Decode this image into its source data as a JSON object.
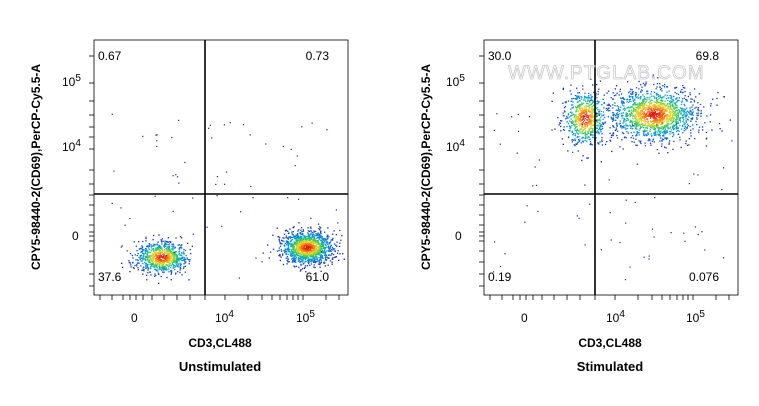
{
  "watermark": "WWW.PTGLAB.COM",
  "chart_data": [
    {
      "type": "scatter",
      "subtype": "flow-cytometry-density-dot-plot",
      "title": "Unstimulated",
      "xlabel": "CD3,CL488",
      "ylabel": "CPY5-98440-2(CD69),PerCP-Cy5.5-A",
      "x_scale": "biexponential",
      "y_scale": "biexponential",
      "x_ticks": [
        "0",
        "10^4",
        "10^5"
      ],
      "y_ticks": [
        "0",
        "10^4",
        "10^5"
      ],
      "quadrant_gates": {
        "x": 6000,
        "y": 2500
      },
      "quadrants": {
        "upper_left": "0.67",
        "upper_right": "0.73",
        "lower_left": "37.6",
        "lower_right": "61.0"
      },
      "populations": [
        {
          "name": "CD3-CD69-",
          "center": {
            "x": 900,
            "y": 0
          },
          "percent": 37.6
        },
        {
          "name": "CD3+CD69-",
          "center": {
            "x": 75000,
            "y": 300
          },
          "percent": 61.0
        }
      ]
    },
    {
      "type": "scatter",
      "subtype": "flow-cytometry-density-dot-plot",
      "title": "Stimulated",
      "xlabel": "CD3,CL488",
      "ylabel": "CPY5-98440-2(CD69),PerCP-Cy5.5-A",
      "x_scale": "biexponential",
      "y_scale": "biexponential",
      "x_ticks": [
        "0",
        "10^4",
        "10^5"
      ],
      "y_ticks": [
        "0",
        "10^4",
        "10^5"
      ],
      "quadrant_gates": {
        "x": 6000,
        "y": 2500
      },
      "quadrants": {
        "upper_left": "30.0",
        "upper_right": "69.8",
        "lower_left": "0.19",
        "lower_right": "0.076"
      },
      "populations": [
        {
          "name": "CD3-CD69+",
          "center": {
            "x": 2500,
            "y": 25000
          },
          "percent": 30.0
        },
        {
          "name": "CD3+CD69+",
          "center": {
            "x": 20000,
            "y": 28000
          },
          "percent": 69.8
        }
      ]
    }
  ]
}
